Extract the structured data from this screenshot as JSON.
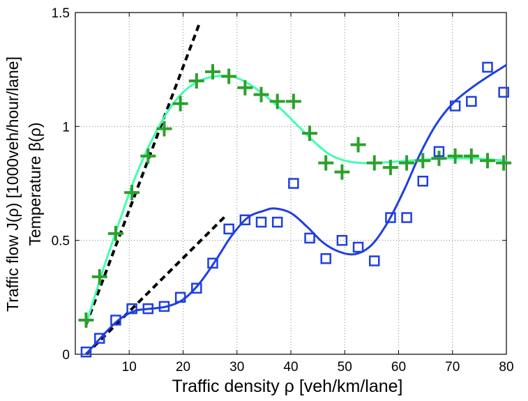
{
  "chart_data": {
    "type": "scatter",
    "xlabel": "Traffic density ρ [veh/km/lane]",
    "ylabel_line1": "Traffic flow J(ρ) [1000veh/hour/lane]",
    "ylabel_line2": "Temperature β(ρ)",
    "xlim": [
      0,
      80
    ],
    "ylim": [
      0,
      1.5
    ],
    "x_ticks": [
      10,
      20,
      30,
      40,
      50,
      60,
      70,
      80
    ],
    "x_tick_labels": [
      "10",
      "20",
      "30",
      "40",
      "50",
      "60",
      "70",
      "80"
    ],
    "y_ticks": [
      0,
      0.5,
      1,
      1.5
    ],
    "y_tick_labels": [
      "0",
      "0.5",
      "1",
      "1.5"
    ],
    "grid": true,
    "series": [
      {
        "marker": "plus",
        "color": "#2ca02c",
        "x": [
          2,
          4.5,
          7.5,
          10.5,
          13.5,
          16.5,
          19.5,
          22.5,
          25.5,
          28.5,
          31.5,
          34.5,
          37.5,
          40.5,
          43.5,
          46.5,
          49.5,
          52.5,
          55.5,
          58.5,
          61.5,
          64.5,
          67.5,
          70.5,
          73.5,
          76.5,
          79.5
        ],
        "y": [
          0.15,
          0.34,
          0.53,
          0.71,
          0.87,
          0.99,
          1.1,
          1.2,
          1.24,
          1.22,
          1.17,
          1.14,
          1.11,
          1.11,
          0.97,
          0.84,
          0.8,
          0.92,
          0.84,
          0.82,
          0.84,
          0.85,
          0.86,
          0.87,
          0.87,
          0.85,
          0.84
        ]
      },
      {
        "marker": "square",
        "color": "#1f3fe0",
        "x": [
          2,
          4.5,
          7.5,
          10.5,
          13.5,
          16.5,
          19.5,
          22.5,
          25.5,
          28.5,
          31.5,
          34.5,
          37.5,
          40.5,
          43.5,
          46.5,
          49.5,
          52.5,
          55.5,
          58.5,
          61.5,
          64.5,
          67.5,
          70.5,
          73.5,
          76.5,
          79.5
        ],
        "y": [
          0.01,
          0.07,
          0.15,
          0.2,
          0.2,
          0.21,
          0.25,
          0.29,
          0.4,
          0.55,
          0.59,
          0.58,
          0.58,
          0.75,
          0.51,
          0.42,
          0.5,
          0.47,
          0.41,
          0.6,
          0.6,
          0.76,
          0.89,
          1.09,
          1.11,
          1.26,
          1.15
        ]
      }
    ],
    "fits": [
      {
        "color": "#40ffb0",
        "x": [
          2,
          5,
          8,
          11,
          14,
          17,
          20,
          23,
          26,
          29,
          32,
          35,
          38,
          41,
          44,
          47,
          50,
          53,
          56,
          59,
          62,
          65,
          68,
          71,
          74,
          77,
          80
        ],
        "y": [
          0.13,
          0.36,
          0.57,
          0.77,
          0.93,
          1.06,
          1.15,
          1.2,
          1.22,
          1.22,
          1.19,
          1.14,
          1.08,
          1.01,
          0.94,
          0.88,
          0.85,
          0.84,
          0.84,
          0.845,
          0.85,
          0.855,
          0.86,
          0.86,
          0.86,
          0.855,
          0.85
        ]
      },
      {
        "color": "#1f3fe0",
        "x": [
          2,
          5,
          8,
          11,
          14,
          17,
          20,
          23,
          26,
          29,
          32,
          35,
          37,
          40,
          43,
          46,
          49,
          52,
          55,
          58,
          61,
          64,
          67,
          70,
          73,
          76,
          80
        ],
        "y": [
          0.0,
          0.08,
          0.15,
          0.19,
          0.2,
          0.21,
          0.24,
          0.31,
          0.41,
          0.52,
          0.6,
          0.63,
          0.64,
          0.62,
          0.56,
          0.49,
          0.45,
          0.44,
          0.48,
          0.58,
          0.72,
          0.88,
          1.01,
          1.1,
          1.16,
          1.21,
          1.27
        ]
      }
    ],
    "reference_lines": [
      {
        "style": "dashed",
        "color": "#000000",
        "x": [
          2,
          23
        ],
        "y": [
          0.13,
          1.45
        ]
      },
      {
        "style": "dashed",
        "color": "#000000",
        "x": [
          2,
          28
        ],
        "y": [
          0.0,
          0.61
        ]
      }
    ]
  }
}
